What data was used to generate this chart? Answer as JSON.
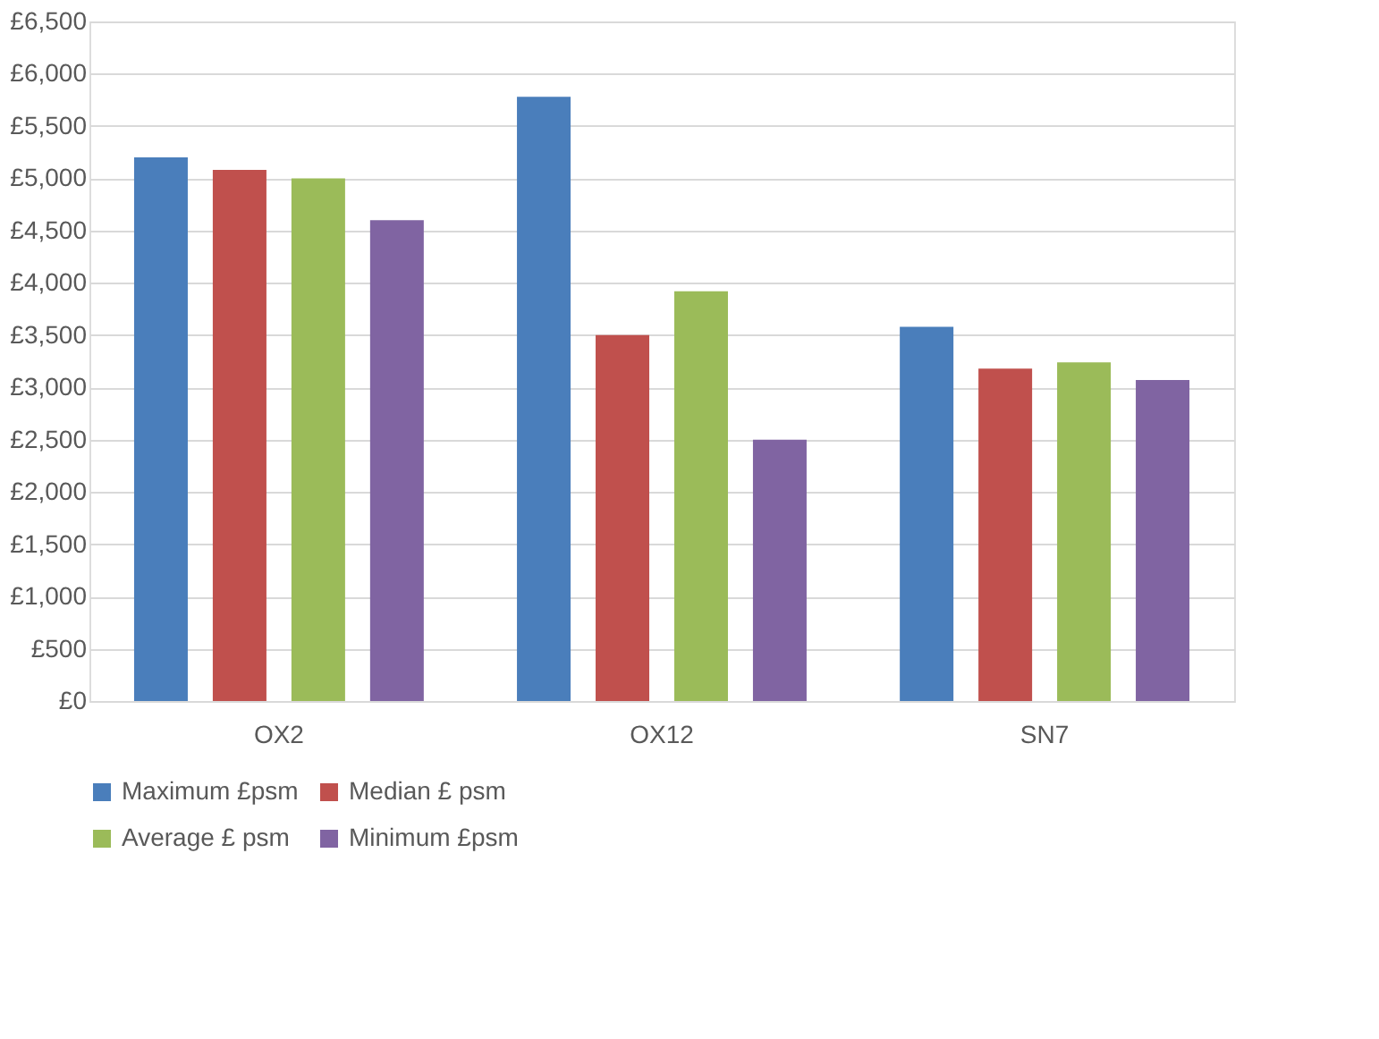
{
  "chart_data": {
    "type": "bar",
    "categories": [
      "OX2",
      "OX12",
      "SN7"
    ],
    "series": [
      {
        "name": "Maximum £psm",
        "color": "#4a7ebb",
        "values": [
          5200,
          5780,
          3580
        ]
      },
      {
        "name": "Median £ psm",
        "color": "#c0504d",
        "values": [
          5080,
          3500,
          3180
        ]
      },
      {
        "name": "Average £ psm",
        "color": "#9bbb59",
        "values": [
          5000,
          3920,
          3240
        ]
      },
      {
        "name": "Minimum £psm",
        "color": "#8064a2",
        "values": [
          4600,
          2500,
          3070
        ]
      }
    ],
    "ylim": [
      0,
      6500
    ],
    "yticks": [
      {
        "value": 0,
        "label": "£0"
      },
      {
        "value": 500,
        "label": "£500"
      },
      {
        "value": 1000,
        "label": "£1,000"
      },
      {
        "value": 1500,
        "label": "£1,500"
      },
      {
        "value": 2000,
        "label": "£2,000"
      },
      {
        "value": 2500,
        "label": "£2,500"
      },
      {
        "value": 3000,
        "label": "£3,000"
      },
      {
        "value": 3500,
        "label": "£3,500"
      },
      {
        "value": 4000,
        "label": "£4,000"
      },
      {
        "value": 4500,
        "label": "£4,500"
      },
      {
        "value": 5000,
        "label": "£5,000"
      },
      {
        "value": 5500,
        "label": "£5,500"
      },
      {
        "value": 6000,
        "label": "£6,000"
      },
      {
        "value": 6500,
        "label": "£6,500"
      }
    ],
    "grid": "y",
    "legend": "bottom"
  }
}
